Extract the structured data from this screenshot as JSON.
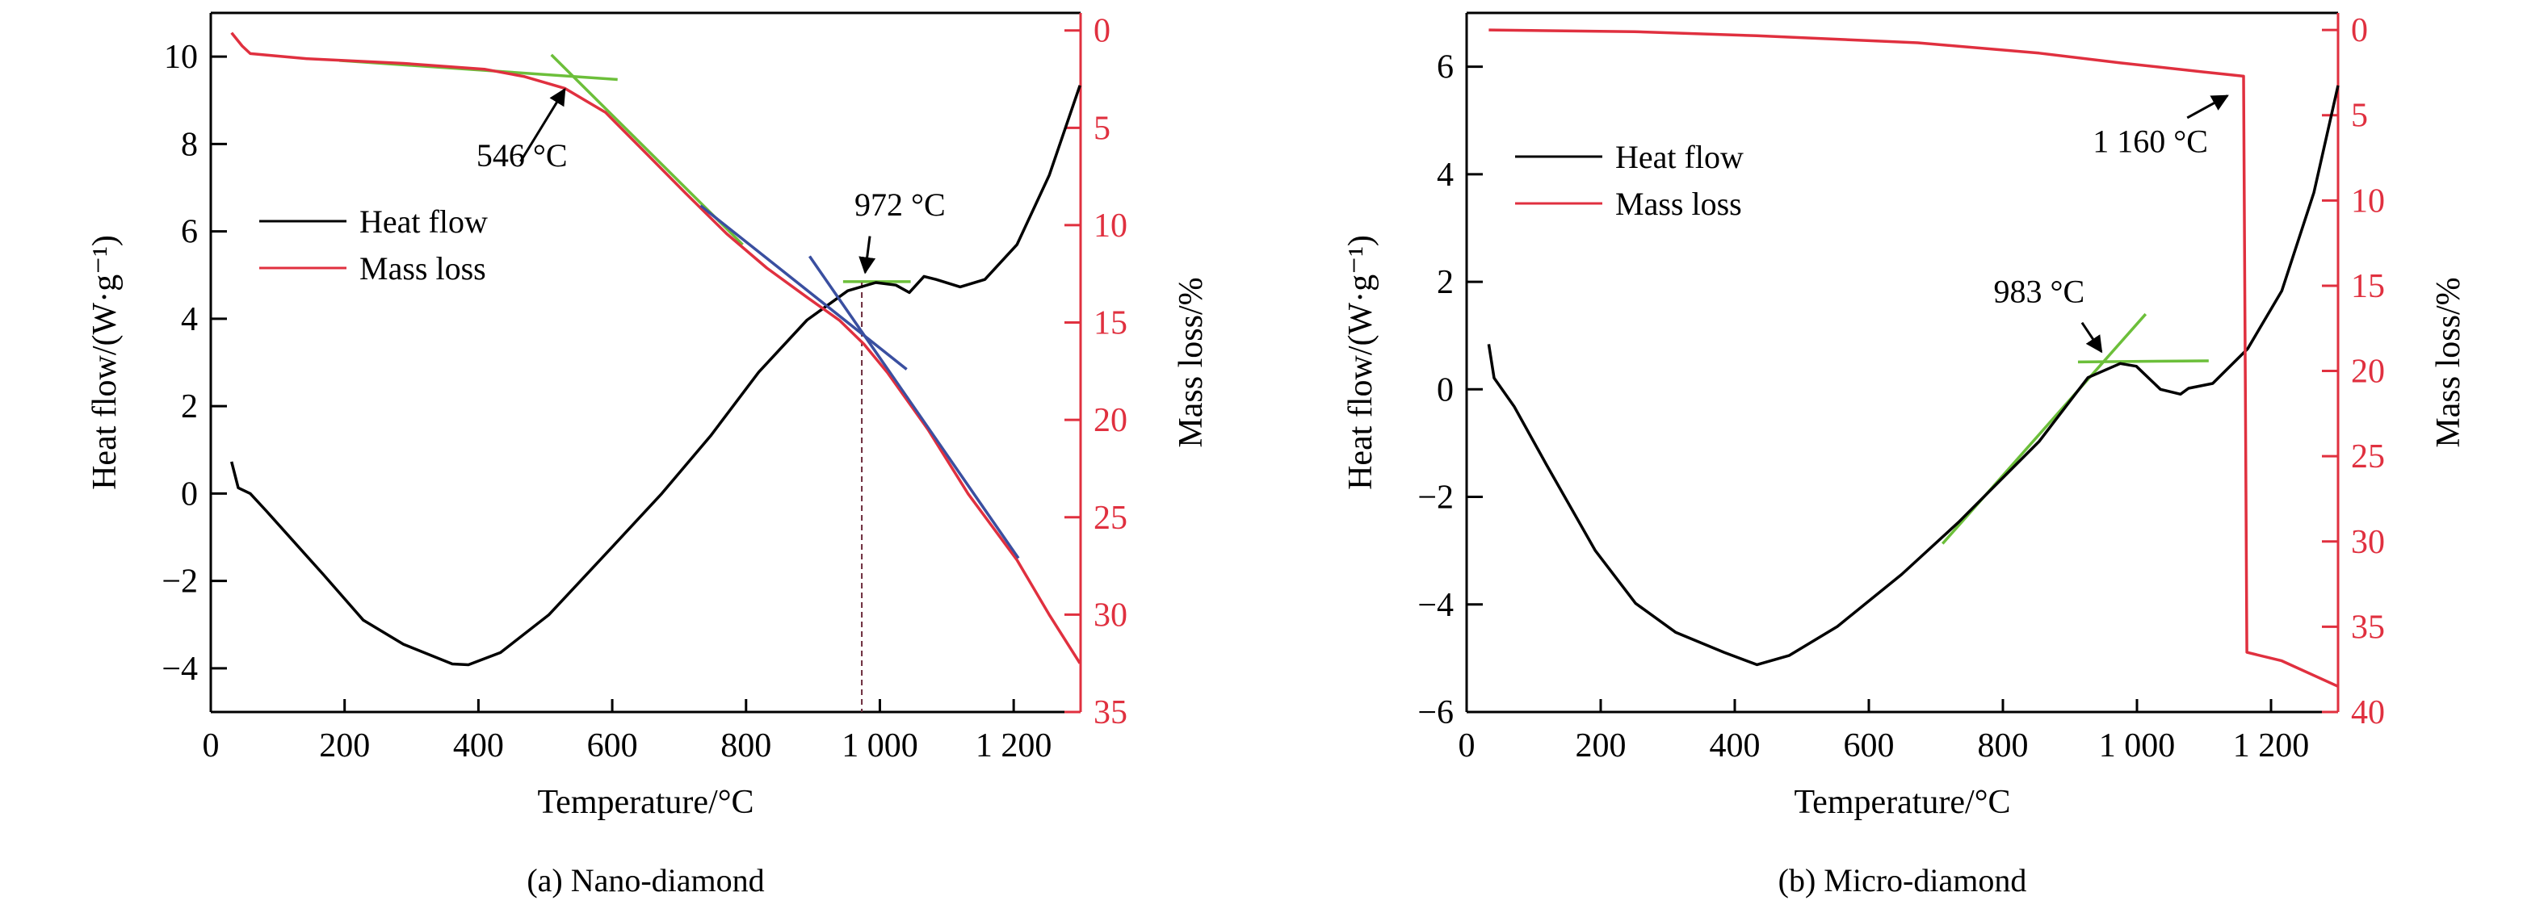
{
  "chart_data": [
    {
      "type": "line",
      "caption": "(a) Nano-diamond",
      "xlabel": "Temperature/°C",
      "ylabel": "Heat flow/(W·g⁻¹)",
      "y2label": "Mass loss/%",
      "xlim": [
        0,
        1300
      ],
      "ylim": [
        -5,
        11
      ],
      "y2lim": [
        35,
        -0.9
      ],
      "xticks": [
        0,
        200,
        400,
        600,
        800,
        1000,
        1200
      ],
      "xtick_labels": [
        "0",
        "200",
        "400",
        "600",
        "800",
        "1 000",
        "1 200"
      ],
      "yticks": [
        -4,
        -2,
        0,
        2,
        4,
        6,
        8,
        10
      ],
      "ytick_labels": [
        "−4",
        "−2",
        "0",
        "2",
        "4",
        "6",
        "8",
        "10"
      ],
      "y2ticks": [
        0,
        5,
        10,
        15,
        20,
        25,
        30,
        35
      ],
      "y2tick_labels": [
        "0",
        "5",
        "10",
        "15",
        "20",
        "25",
        "30",
        "35"
      ],
      "legend": {
        "placement": "upper-left",
        "entries": [
          "Heat flow",
          "Mass loss"
        ]
      },
      "series": [
        {
          "name": "Heat flow",
          "axis": "left",
          "color": "#000000",
          "x": [
            31,
            41,
            59,
            83,
            168,
            228,
            288,
            361,
            385,
            433,
            505,
            602,
            674,
            747,
            819,
            891,
            952,
            994,
            1024,
            1044,
            1066,
            1084,
            1120,
            1157,
            1205,
            1253,
            1299
          ],
          "y": [
            0.73,
            0.13,
            0.0,
            -0.4,
            -1.85,
            -2.9,
            -3.45,
            -3.9,
            -3.92,
            -3.64,
            -2.78,
            -1.19,
            0.0,
            1.32,
            2.78,
            3.97,
            4.64,
            4.83,
            4.77,
            4.6,
            4.97,
            4.9,
            4.73,
            4.9,
            5.7,
            7.28,
            9.34
          ]
        },
        {
          "name": "Mass loss",
          "axis": "right",
          "color": "#e0303f",
          "x": [
            31,
            47,
            59,
            144,
            288,
            409,
            469,
            529,
            590,
            650,
            710,
            771,
            831,
            891,
            940,
            976,
            1012,
            1072,
            1132,
            1205,
            1253,
            1299
          ],
          "y": [
            0.12,
            0.8,
            1.19,
            1.45,
            1.69,
            1.99,
            2.37,
            2.97,
            4.21,
            6.29,
            8.37,
            10.44,
            12.2,
            13.7,
            14.9,
            16.1,
            17.6,
            20.5,
            23.8,
            27.2,
            30.0,
            32.5
          ]
        }
      ],
      "tangents": [
        {
          "axis": "right",
          "color": "#6cbf3a",
          "x": [
            192,
            608
          ],
          "y": [
            1.54,
            2.52
          ]
        },
        {
          "axis": "right",
          "color": "#6cbf3a",
          "x": [
            509,
            795
          ],
          "y": [
            1.25,
            11.0
          ]
        },
        {
          "axis": "right",
          "color": "#3a4fa0",
          "x": [
            732,
            1040
          ],
          "y": [
            9.0,
            17.4
          ]
        },
        {
          "axis": "right",
          "color": "#3a4fa0",
          "x": [
            895,
            1207
          ],
          "y": [
            11.6,
            27.1
          ]
        },
        {
          "axis": "left",
          "color": "#6cbf3a",
          "x": [
            945,
            1046
          ],
          "y": [
            4.85,
            4.85
          ]
        }
      ],
      "dashed_line": {
        "axis": "left",
        "color": "#6b2a3a",
        "x": 973,
        "y": [
          4.83,
          -5
        ]
      },
      "annotations": [
        {
          "text": "546 °C",
          "axis": "left",
          "x": 465,
          "y": 7.75,
          "arrow_from": [
            463,
            7.6
          ],
          "arrow_to": [
            529,
            9.25
          ]
        },
        {
          "text": "972 °C",
          "axis": "left",
          "x": 1030,
          "y": 6.62,
          "arrow_from": [
            985,
            5.89
          ],
          "arrow_to": [
            978,
            5.06
          ]
        }
      ]
    },
    {
      "type": "line",
      "caption": "(b) Micro-diamond",
      "xlabel": "Temperature/°C",
      "ylabel": "Heat flow/(W·g⁻¹)",
      "y2label": "Mass loss/%",
      "xlim": [
        0,
        1300
      ],
      "ylim": [
        -6,
        7
      ],
      "y2lim": [
        40,
        -1
      ],
      "xticks": [
        0,
        200,
        400,
        600,
        800,
        1000,
        1200
      ],
      "xtick_labels": [
        "0",
        "200",
        "400",
        "600",
        "800",
        "1 000",
        "1 200"
      ],
      "yticks": [
        -6,
        -4,
        -2,
        0,
        2,
        4,
        6
      ],
      "ytick_labels": [
        "−6",
        "−4",
        "−2",
        "0",
        "2",
        "4",
        "6"
      ],
      "y2ticks": [
        0,
        5,
        10,
        15,
        20,
        25,
        30,
        35,
        40
      ],
      "y2tick_labels": [
        "0",
        "5",
        "10",
        "15",
        "20",
        "25",
        "30",
        "35",
        "40"
      ],
      "legend": {
        "placement": "upper-left",
        "entries": [
          "Heat flow",
          "Mass loss"
        ]
      },
      "series": [
        {
          "name": "Heat flow",
          "axis": "left",
          "color": "#000000",
          "x": [
            33,
            41,
            71,
            119,
            192,
            252,
            312,
            384,
            433,
            481,
            553,
            649,
            734,
            854,
            927,
            975,
            999,
            1035,
            1065,
            1077,
            1113,
            1165,
            1216,
            1264,
            1300
          ],
          "y": [
            0.84,
            0.21,
            -0.32,
            -1.4,
            -3.0,
            -3.98,
            -4.52,
            -4.89,
            -5.12,
            -4.95,
            -4.41,
            -3.44,
            -2.47,
            -0.97,
            0.22,
            0.48,
            0.43,
            0.0,
            -0.09,
            0.02,
            0.11,
            0.75,
            1.83,
            3.66,
            5.65
          ]
        },
        {
          "name": "Mass loss",
          "axis": "right",
          "color": "#e0303f",
          "x": [
            33,
            250,
            433,
            673,
            854,
            975,
            1095,
            1159,
            1164,
            1216,
            1300
          ],
          "y": [
            0,
            0.1,
            0.34,
            0.75,
            1.36,
            1.93,
            2.44,
            2.71,
            36.5,
            37.0,
            38.5
          ]
        }
      ],
      "tangents": [
        {
          "axis": "left",
          "color": "#6cbf3a",
          "x": [
            710,
            1013
          ],
          "y": [
            -2.87,
            1.4
          ]
        },
        {
          "axis": "left",
          "color": "#6cbf3a",
          "x": [
            912,
            1107
          ],
          "y": [
            0.51,
            0.53
          ]
        }
      ],
      "annotations": [
        {
          "text": "983 °C",
          "axis": "left",
          "x": 854,
          "y": 1.83,
          "arrow_from": [
            918,
            1.24
          ],
          "arrow_to": [
            947,
            0.7
          ]
        },
        {
          "text": "1 160 °C",
          "axis": "left",
          "x": 1020,
          "y": 4.62,
          "arrow_from": [
            1075,
            5.05
          ],
          "arrow_to": [
            1135,
            5.46
          ]
        }
      ]
    }
  ]
}
